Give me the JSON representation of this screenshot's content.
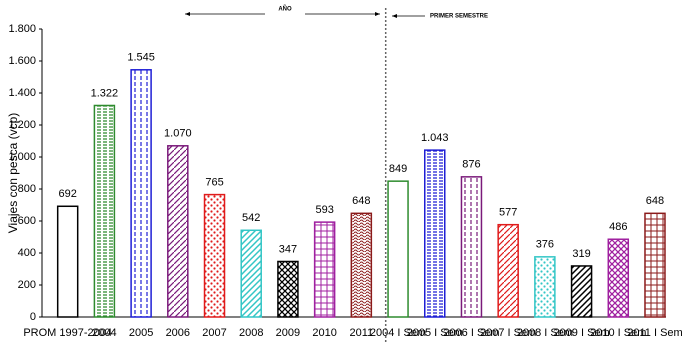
{
  "chart_data": {
    "type": "bar",
    "ylabel": "Viajes con pesca (vcp)",
    "annotations": [
      "AÑO",
      "PRIMER SEMESTRE"
    ],
    "categories": [
      "PROM 1997-2004",
      "2004",
      "2005",
      "2006",
      "2007",
      "2008",
      "2009",
      "2010",
      "2011",
      "2004 I Sem",
      "2005 I Sem",
      "2006 I Sem",
      "2007 I Sem",
      "2008 I Sem",
      "2009 I Sem",
      "2010 I Sem",
      "2011 I Sem"
    ],
    "values": [
      692,
      1322,
      1545,
      1070,
      765,
      542,
      347,
      593,
      648,
      849,
      1043,
      876,
      577,
      376,
      319,
      486,
      648
    ],
    "value_labels": [
      "692",
      "1.322",
      "1.545",
      "1.070",
      "765",
      "542",
      "347",
      "593",
      "648",
      "849",
      "1.043",
      "876",
      "577",
      "376",
      "319",
      "486",
      "648"
    ],
    "colors": [
      "#000000",
      "#2e8b2e",
      "#1f1fd6",
      "#7a1a7a",
      "#e01b1b",
      "#33c6c6",
      "#000000",
      "#a020a0",
      "#8b1a1a",
      "#2e8b2e",
      "#1f1fd6",
      "#7a1a7a",
      "#e01b1b",
      "#33c6c6",
      "#000000",
      "#a020a0",
      "#8b1a1a"
    ],
    "ylim": [
      0,
      1800
    ],
    "yticks": [
      0,
      200,
      400,
      600,
      800,
      {
        "value": 1000,
        "label": "1.000"
      },
      {
        "value": 1200,
        "label": "1.200"
      },
      {
        "value": 1400,
        "label": "1.400"
      },
      {
        "value": 1600,
        "label": "1.600"
      },
      {
        "value": 1800,
        "label": "1.800"
      }
    ]
  }
}
